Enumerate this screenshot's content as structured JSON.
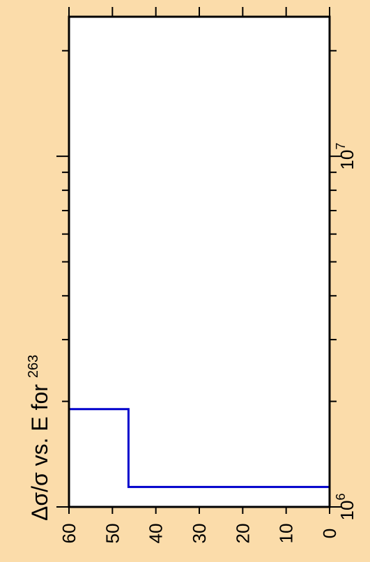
{
  "chart_data": {
    "type": "line",
    "step": true,
    "orientation": "rotated-90",
    "title": {
      "text": "Δσ/σ vs. E for ",
      "superscript": "263"
    },
    "xlabel": "",
    "ylabel": "",
    "x_axis": {
      "scale": "log",
      "range": [
        1000000,
        25000000
      ],
      "tick_labels": [
        {
          "value": 1000000,
          "base": "10",
          "exp": "6"
        },
        {
          "value": 10000000,
          "base": "10",
          "exp": "7"
        }
      ]
    },
    "y_axis": {
      "scale": "linear",
      "range": [
        0,
        60
      ],
      "ticks": [
        0,
        10,
        20,
        30,
        40,
        50,
        60
      ],
      "tick_labels": [
        "0",
        "10",
        "20",
        "30",
        "40",
        "50",
        "60"
      ]
    },
    "series": [
      {
        "color": "#0000cc",
        "x": [
          1000000,
          1140000,
          1140000,
          1900000,
          1900000,
          25000000
        ],
        "y": [
          0,
          0,
          46.3,
          46.3,
          60,
          60
        ]
      }
    ],
    "grid": false,
    "colors": {
      "background": "#fbdcaa",
      "plot_area": "#ffffff",
      "series": "#0000cc"
    }
  }
}
